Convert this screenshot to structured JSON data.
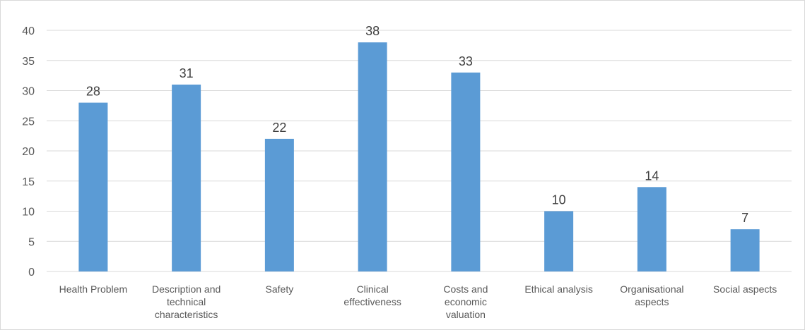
{
  "chart_data": {
    "type": "bar",
    "title": "",
    "xlabel": "",
    "ylabel": "",
    "categories": [
      "Health Problem",
      "Description and technical characteristics",
      "Safety",
      "Clinical effectiveness",
      "Costs and economic valuation",
      "Ethical analysis",
      "Organisational aspects",
      "Social aspects"
    ],
    "category_lines": [
      [
        "Health Problem"
      ],
      [
        "Description and",
        "technical",
        "characteristics"
      ],
      [
        "Safety"
      ],
      [
        "Clinical",
        "effectiveness"
      ],
      [
        "Costs and",
        "economic",
        "valuation"
      ],
      [
        "Ethical analysis"
      ],
      [
        "Organisational",
        "aspects"
      ],
      [
        "Social aspects"
      ]
    ],
    "values": [
      28,
      31,
      22,
      38,
      33,
      10,
      14,
      7
    ],
    "ylim": [
      0,
      40
    ],
    "yticks": [
      0,
      5,
      10,
      15,
      20,
      25,
      30,
      35,
      40
    ],
    "grid": true,
    "legend": "none",
    "data_labels": true,
    "bar_color": "#5B9BD5",
    "grid_color": "#d9d9d9"
  }
}
